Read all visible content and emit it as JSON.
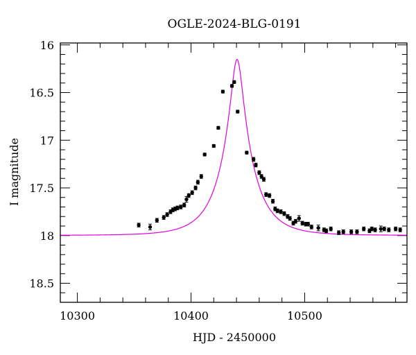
{
  "chart_data": {
    "type": "scatter",
    "title": "OGLE-2024-BLG-0191",
    "xlabel": "HJD - 2450000",
    "ylabel": "I magnitude",
    "xlim": [
      10285,
      10590
    ],
    "ylim": [
      18.7,
      15.98
    ],
    "y_inverted": true,
    "grid": false,
    "legend": "none",
    "x_ticks": [
      10300,
      10400,
      10500
    ],
    "y_ticks": [
      16,
      16.5,
      17,
      17.5,
      18,
      18.5
    ],
    "colors": {
      "model": "#e000e0",
      "points": "#000000",
      "frame": "#000000"
    },
    "model_params": {
      "t0": 10440.5,
      "u0": 0.185,
      "tE": 27.0,
      "I_base": 18.0,
      "I_base_offset": -0.002
    },
    "series": [
      {
        "type": "points_with_errorbars",
        "x": [
          10354,
          10364,
          10370,
          10376,
          10379,
          10382,
          10384,
          10386,
          10388,
          10391,
          10394,
          10396,
          10398,
          10401,
          10404,
          10406,
          10409,
          10412,
          10420,
          10424,
          10428,
          10436,
          10438,
          10441,
          10449,
          10455,
          10457,
          10460,
          10462,
          10464,
          10466,
          10469,
          10472,
          10474,
          10476,
          10479,
          10482,
          10485,
          10487,
          10490,
          10492,
          10495,
          10498,
          10501,
          10503,
          10506,
          10512,
          10517,
          10519,
          10523,
          10530,
          10534,
          10541,
          10546,
          10552,
          10557,
          10559,
          10562,
          10567,
          10570,
          10574,
          10580,
          10584
        ],
        "y": [
          17.89,
          17.91,
          17.84,
          17.81,
          17.78,
          17.75,
          17.73,
          17.72,
          17.71,
          17.7,
          17.68,
          17.62,
          17.58,
          17.55,
          17.5,
          17.44,
          17.38,
          17.15,
          17.06,
          16.87,
          16.49,
          16.43,
          16.39,
          16.7,
          17.13,
          17.2,
          17.26,
          17.34,
          17.38,
          17.41,
          17.57,
          17.58,
          17.64,
          17.72,
          17.74,
          17.75,
          17.77,
          17.8,
          17.82,
          17.87,
          17.85,
          17.82,
          17.87,
          17.88,
          17.88,
          17.91,
          17.92,
          17.94,
          17.95,
          17.93,
          17.97,
          17.96,
          17.96,
          17.96,
          17.93,
          17.95,
          17.93,
          17.94,
          17.93,
          17.93,
          17.94,
          17.93,
          17.94
        ],
        "yerr": [
          0.02,
          0.03,
          0.02,
          0.02,
          0.02,
          0.02,
          0.02,
          0.02,
          0.02,
          0.02,
          0.02,
          0.03,
          0.02,
          0.02,
          0.02,
          0.02,
          0.02,
          0.015,
          0.015,
          0.015,
          0.015,
          0.015,
          0.015,
          0.015,
          0.015,
          0.02,
          0.02,
          0.02,
          0.02,
          0.02,
          0.02,
          0.02,
          0.02,
          0.02,
          0.02,
          0.02,
          0.02,
          0.02,
          0.02,
          0.02,
          0.02,
          0.03,
          0.02,
          0.02,
          0.02,
          0.02,
          0.03,
          0.02,
          0.02,
          0.02,
          0.02,
          0.02,
          0.02,
          0.02,
          0.02,
          0.02,
          0.02,
          0.02,
          0.03,
          0.02,
          0.02,
          0.02,
          0.02
        ]
      }
    ]
  }
}
